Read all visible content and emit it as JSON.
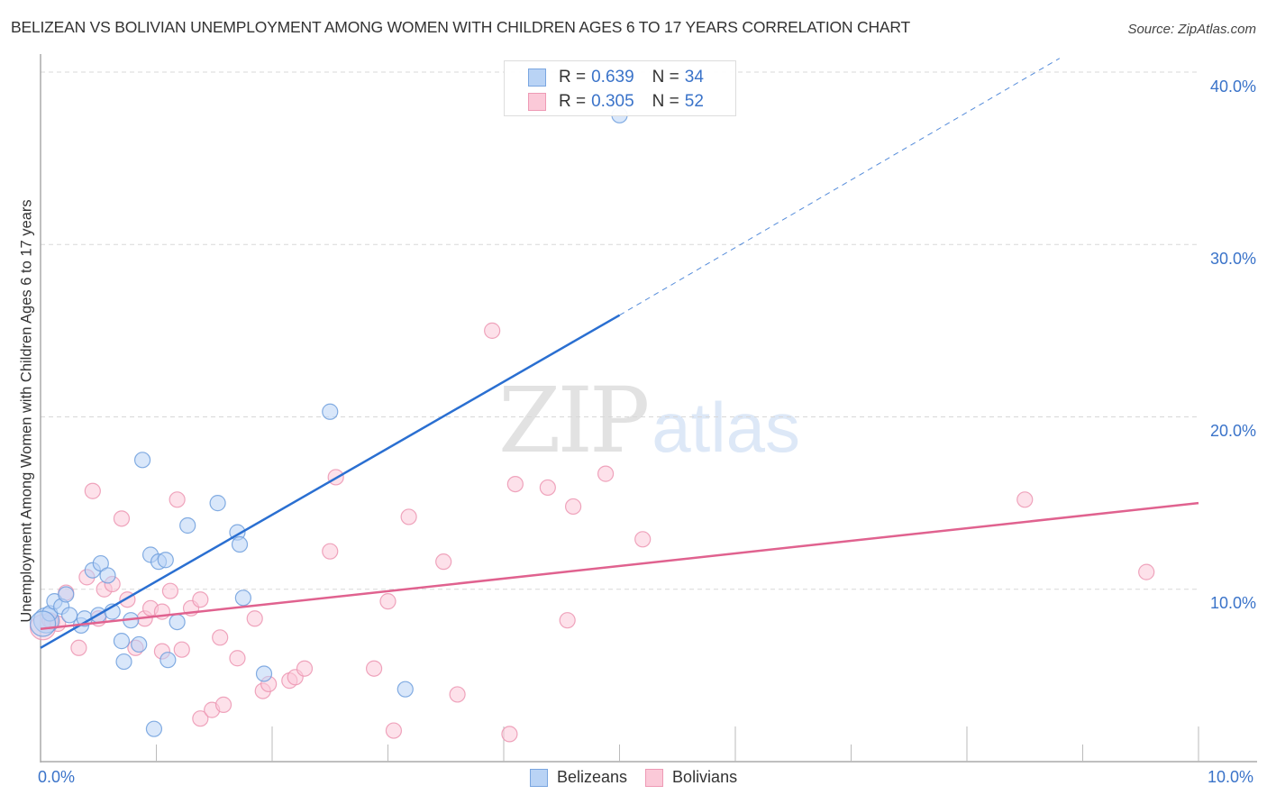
{
  "header": {
    "title": "BELIZEAN VS BOLIVIAN UNEMPLOYMENT AMONG WOMEN WITH CHILDREN AGES 6 TO 17 YEARS CORRELATION CHART",
    "source": "Source: ZipAtlas.com"
  },
  "legend": {
    "rows": [
      {
        "series": "Belizeans",
        "r_label": "R =",
        "r_value": "0.639",
        "n_label": "N =",
        "n_value": "34",
        "color": "#b9d3f5"
      },
      {
        "series": "Bolivians",
        "r_label": "R =",
        "r_value": "0.305",
        "n_label": "N =",
        "n_value": "52",
        "color": "#fbc9d8"
      }
    ],
    "bottom": [
      {
        "label": "Belizeans",
        "color": "#b9d3f5"
      },
      {
        "label": "Bolivians",
        "color": "#fbc9d8"
      }
    ]
  },
  "axes": {
    "ylabel": "Unemployment Among Women with Children Ages 6 to 17 years",
    "y_ticks": [
      "10.0%",
      "20.0%",
      "30.0%",
      "40.0%"
    ],
    "x_ticks": [
      "0.0%",
      "10.0%"
    ]
  },
  "watermark": {
    "zip": "ZIP",
    "atlas": "atlas"
  },
  "colors": {
    "belizean_fill": "#b9d3f5",
    "belizean_stroke": "#6f9fdd",
    "belizean_line": "#2a6fd1",
    "bolivian_fill": "#fbc9d8",
    "bolivian_stroke": "#ec95b1",
    "bolivian_line": "#e0628f",
    "tick_text": "#3a73c9"
  },
  "chart_data": {
    "type": "scatter",
    "title": "BELIZEAN VS BOLIVIAN UNEMPLOYMENT AMONG WOMEN WITH CHILDREN AGES 6 TO 17 YEARS CORRELATION CHART",
    "xlabel": "",
    "ylabel": "Unemployment Among Women with Children Ages 6 to 17 years",
    "xlim": [
      0,
      10
    ],
    "ylim": [
      0,
      40
    ],
    "x_unit": "%",
    "y_unit": "%",
    "grid": true,
    "legend_position": "top-center and bottom",
    "series": [
      {
        "name": "Belizeans",
        "R": 0.639,
        "N": 34,
        "trendline": {
          "x": [
            0,
            5.0
          ],
          "y": [
            6.6,
            25.9
          ],
          "extrapolated_to": [
            8.8,
            40.8
          ]
        },
        "points": [
          [
            0.05,
            8.2
          ],
          [
            0.08,
            8.6
          ],
          [
            0.12,
            9.3
          ],
          [
            0.18,
            9.0
          ],
          [
            0.22,
            9.7
          ],
          [
            0.25,
            8.5
          ],
          [
            0.35,
            7.9
          ],
          [
            0.38,
            8.3
          ],
          [
            0.45,
            11.1
          ],
          [
            0.52,
            11.5
          ],
          [
            0.58,
            10.8
          ],
          [
            0.5,
            8.5
          ],
          [
            0.62,
            8.7
          ],
          [
            0.7,
            7.0
          ],
          [
            0.72,
            5.8
          ],
          [
            0.78,
            8.2
          ],
          [
            0.85,
            6.8
          ],
          [
            0.88,
            17.5
          ],
          [
            0.95,
            12.0
          ],
          [
            1.02,
            11.6
          ],
          [
            1.08,
            11.7
          ],
          [
            1.1,
            5.9
          ],
          [
            0.98,
            1.9
          ],
          [
            1.18,
            8.1
          ],
          [
            1.27,
            13.7
          ],
          [
            1.53,
            15.0
          ],
          [
            1.7,
            13.3
          ],
          [
            1.72,
            12.6
          ],
          [
            1.75,
            9.5
          ],
          [
            1.93,
            5.1
          ],
          [
            2.5,
            20.3
          ],
          [
            3.15,
            4.2
          ],
          [
            5.0,
            37.5
          ],
          [
            0.02,
            8.0
          ]
        ]
      },
      {
        "name": "Bolivians",
        "R": 0.305,
        "N": 52,
        "trendline": {
          "x": [
            0,
            10.0
          ],
          "y": [
            7.7,
            15.0
          ]
        },
        "points": [
          [
            0.02,
            7.8
          ],
          [
            0.1,
            8.1
          ],
          [
            0.22,
            9.8
          ],
          [
            0.33,
            6.6
          ],
          [
            0.4,
            10.7
          ],
          [
            0.45,
            15.7
          ],
          [
            0.5,
            8.3
          ],
          [
            0.55,
            10.0
          ],
          [
            0.62,
            10.3
          ],
          [
            0.7,
            14.1
          ],
          [
            0.75,
            9.4
          ],
          [
            0.82,
            6.6
          ],
          [
            0.9,
            8.3
          ],
          [
            0.95,
            8.9
          ],
          [
            1.05,
            6.4
          ],
          [
            1.05,
            8.7
          ],
          [
            1.12,
            9.9
          ],
          [
            1.18,
            15.2
          ],
          [
            1.22,
            6.5
          ],
          [
            1.3,
            8.9
          ],
          [
            1.38,
            9.4
          ],
          [
            1.38,
            2.5
          ],
          [
            1.48,
            3.0
          ],
          [
            1.55,
            7.2
          ],
          [
            1.58,
            3.3
          ],
          [
            1.7,
            6.0
          ],
          [
            1.85,
            8.3
          ],
          [
            1.92,
            4.1
          ],
          [
            1.97,
            4.5
          ],
          [
            2.15,
            4.7
          ],
          [
            2.2,
            4.9
          ],
          [
            2.28,
            5.4
          ],
          [
            2.5,
            12.2
          ],
          [
            2.55,
            16.5
          ],
          [
            2.88,
            5.4
          ],
          [
            3.0,
            9.3
          ],
          [
            3.05,
            1.8
          ],
          [
            3.18,
            14.2
          ],
          [
            3.48,
            11.6
          ],
          [
            3.6,
            3.9
          ],
          [
            3.9,
            25.0
          ],
          [
            4.05,
            1.6
          ],
          [
            4.1,
            16.1
          ],
          [
            4.38,
            15.9
          ],
          [
            4.55,
            8.2
          ],
          [
            4.6,
            14.8
          ],
          [
            4.88,
            16.7
          ],
          [
            5.2,
            12.9
          ],
          [
            8.5,
            15.2
          ],
          [
            9.55,
            11.0
          ],
          [
            0.08,
            8.2
          ],
          [
            0.15,
            8.0
          ]
        ]
      }
    ]
  }
}
